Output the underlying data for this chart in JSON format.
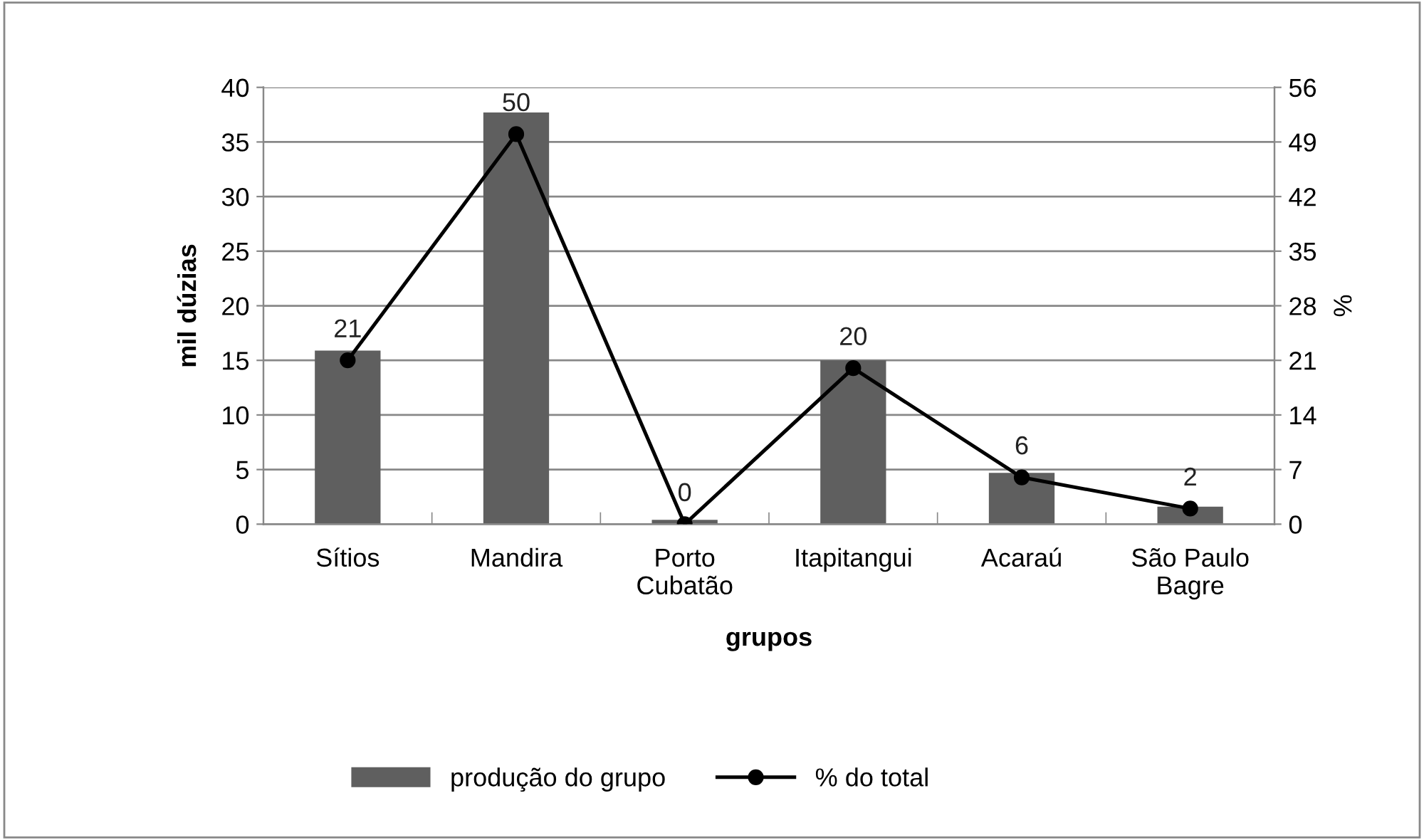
{
  "chart_data": {
    "type": "bar",
    "xlabel": "grupos",
    "ylabel": "mil dúzias",
    "y2label": "%",
    "categories": [
      "Sítios",
      "Mandira",
      "Porto\nCubatão",
      "Itapitangui",
      "Acaraú",
      "São Paulo\nBagre"
    ],
    "series": [
      {
        "name": "produção do grupo",
        "color": "#5f5f5f",
        "values": [
          15.9,
          37.7,
          0.4,
          15.0,
          4.7,
          1.6
        ]
      },
      {
        "name": "% do total",
        "type": "line",
        "axis": "y2",
        "color": "#000000",
        "marker": "circle",
        "data_labels": true,
        "values": [
          21,
          50,
          0,
          20,
          6,
          2
        ]
      }
    ],
    "ylim": [
      0,
      40
    ],
    "yticks": [
      0,
      5,
      10,
      15,
      20,
      25,
      30,
      35,
      40
    ],
    "y2lim": [
      0,
      56
    ],
    "y2ticks": [
      0,
      7,
      14,
      21,
      28,
      35,
      42,
      49,
      56
    ],
    "grid": "y",
    "legend": "bottom"
  }
}
